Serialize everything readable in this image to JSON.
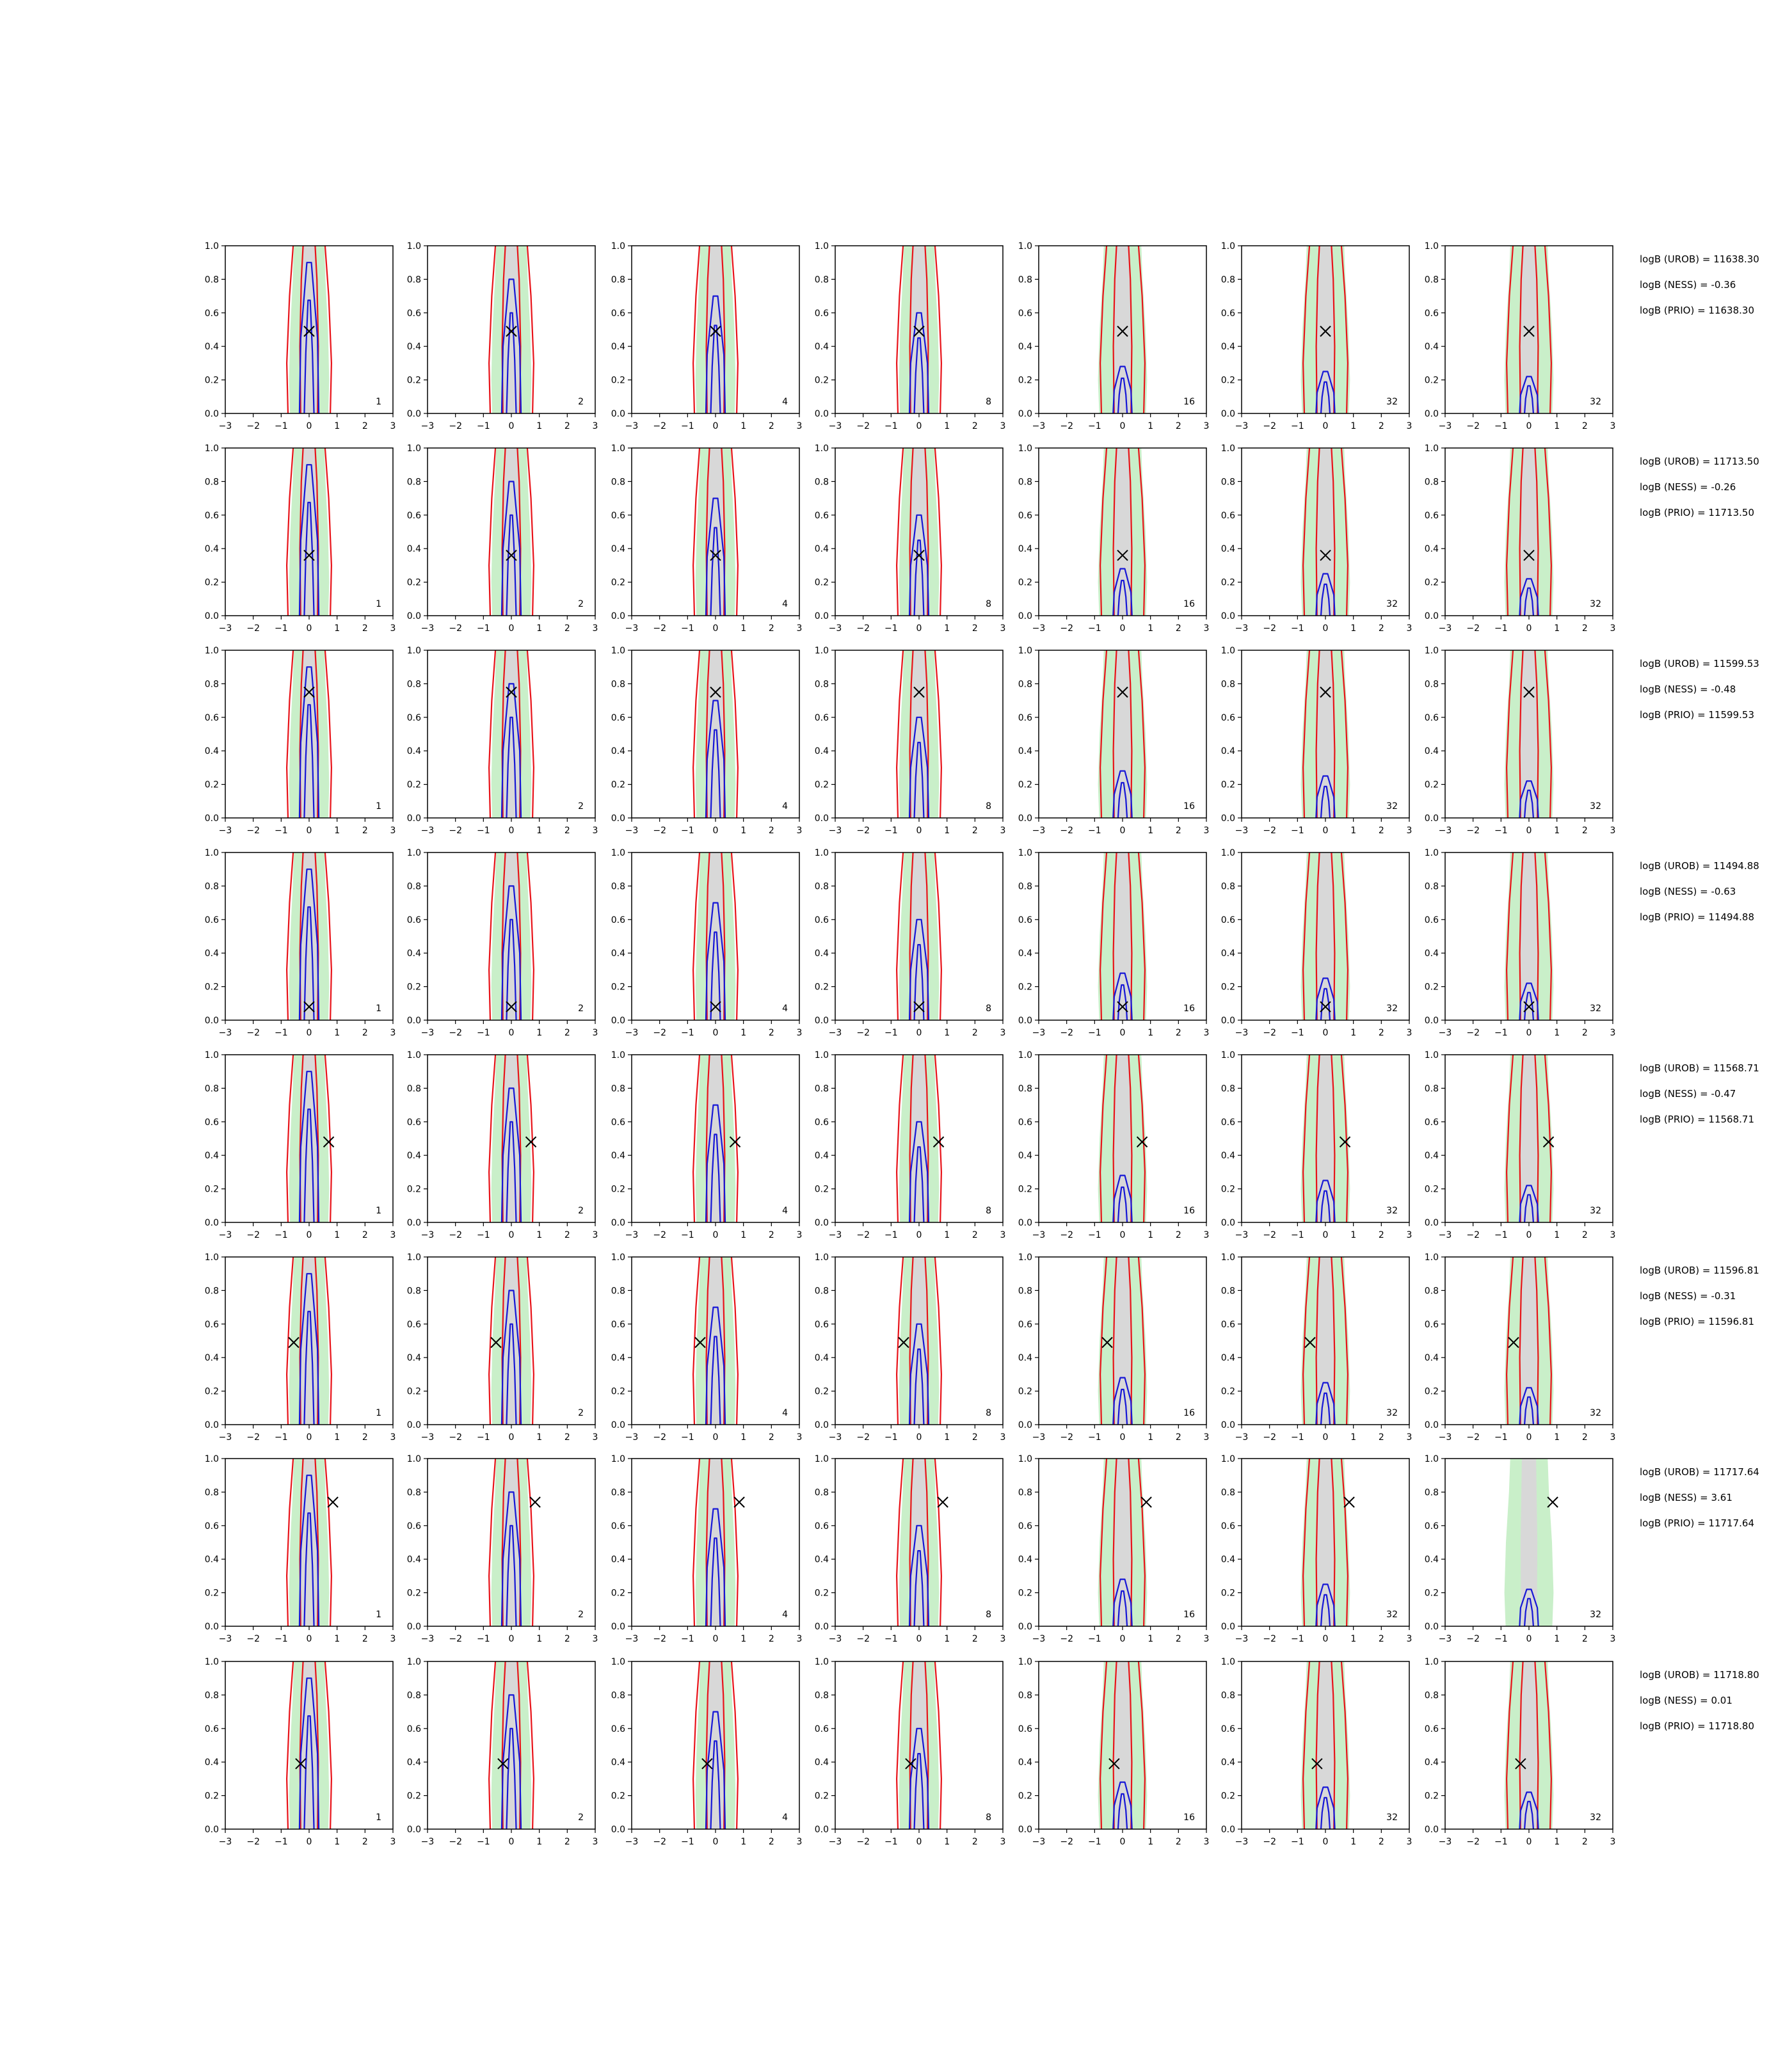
{
  "chart_data": {
    "type": "grid-of-contour-plots",
    "rows": 8,
    "cols": 7,
    "xlim": [
      -3,
      3
    ],
    "ylim": [
      0.0,
      1.0
    ],
    "xticks": [
      -3,
      -2,
      -1,
      0,
      1,
      2,
      3
    ],
    "yticks": [
      "0.0",
      "0.2",
      "0.4",
      "0.6",
      "0.8",
      "1.0"
    ],
    "panel_numbers": [
      "1",
      "2",
      "4",
      "8",
      "16",
      "32",
      "32"
    ],
    "colors": {
      "green_fill": "#c9efc9",
      "grey_fill": "#d8d8d8",
      "red": "#e8141a",
      "blue": "#1717d6",
      "marker": "#000000"
    },
    "row_data": [
      {
        "true_point": [
          0.0,
          0.49
        ],
        "stats": [
          "logB (UROB) = 11638.30",
          "logB (NESS) = -0.36",
          "logB (PRIO) = 11638.30"
        ]
      },
      {
        "true_point": [
          0.0,
          0.36
        ],
        "stats": [
          "logB (UROB) = 11713.50",
          "logB (NESS) = -0.26",
          "logB (PRIO) = 11713.50"
        ]
      },
      {
        "true_point": [
          0.0,
          0.75
        ],
        "stats": [
          "logB (UROB) = 11599.53",
          "logB (NESS) = -0.48",
          "logB (PRIO) = 11599.53"
        ]
      },
      {
        "true_point": [
          0.0,
          0.08
        ],
        "stats": [
          "logB (UROB) = 11494.88",
          "logB (NESS) = -0.63",
          "logB (PRIO) = 11494.88"
        ]
      },
      {
        "true_point": [
          0.7,
          0.48
        ],
        "stats": [
          "logB (UROB) = 11568.71",
          "logB (NESS) = -0.47",
          "logB (PRIO) = 11568.71"
        ]
      },
      {
        "true_point": [
          -0.55,
          0.49
        ],
        "stats": [
          "logB (UROB) = 11596.81",
          "logB (NESS) = -0.31",
          "logB (PRIO) = 11596.81"
        ]
      },
      {
        "true_point": [
          0.85,
          0.74
        ],
        "stats": [
          "logB (UROB) = 11717.64",
          "logB (NESS) = 3.61",
          "logB (PRIO) = 11717.64"
        ]
      },
      {
        "true_point": [
          -0.3,
          0.39
        ],
        "stats": [
          "logB (UROB) = 11718.80",
          "logB (NESS) = 0.01",
          "logB (PRIO) = 11718.80"
        ]
      }
    ]
  }
}
